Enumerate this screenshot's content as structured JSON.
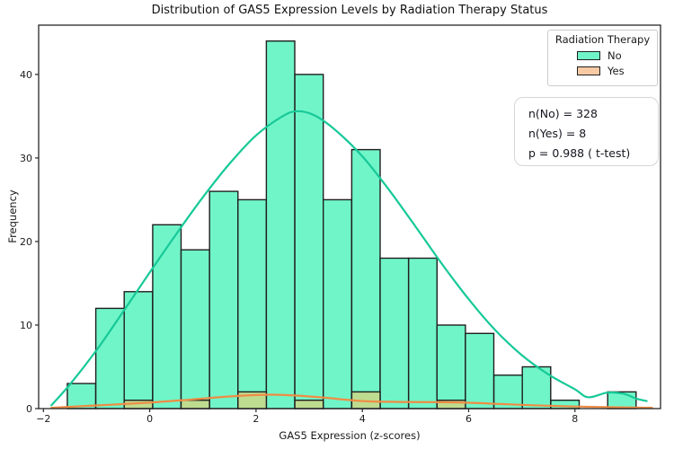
{
  "figure": {
    "title": "Distribution of GAS5 Expression Levels by Radiation Therapy Status"
  },
  "chart_data": {
    "type": "histogram",
    "title": "Distribution of GAS5 Expression Levels by Radiation Therapy Status",
    "xlabel": "GAS5 Expression (z-scores)",
    "ylabel": "Frequency",
    "xlim": [
      -2.09,
      9.61
    ],
    "ylim": [
      0,
      45.9
    ],
    "xticks": [
      -2,
      0,
      2,
      4,
      6,
      8
    ],
    "xtick_labels": [
      "−2",
      "0",
      "2",
      "4",
      "6",
      "8"
    ],
    "yticks": [
      0,
      10,
      20,
      30,
      40
    ],
    "ytick_labels": [
      "0",
      "10",
      "20",
      "30",
      "40"
    ],
    "grid": false,
    "bins": {
      "start": -1.55,
      "width": 0.535,
      "count": 20
    },
    "series": [
      {
        "name": "No",
        "counts": [
          3,
          12,
          14,
          22,
          19,
          26,
          25,
          44,
          40,
          25,
          31,
          18,
          18,
          10,
          9,
          4,
          5,
          1,
          0,
          2
        ],
        "total": 328
      },
      {
        "name": "Yes",
        "counts": [
          0,
          0,
          1,
          0,
          1,
          0,
          2,
          0,
          1,
          0,
          2,
          0,
          0,
          1,
          0,
          0,
          0,
          0,
          0,
          0
        ],
        "total": 8
      }
    ],
    "kde": {
      "no": [
        [
          -1.85,
          0.4
        ],
        [
          -1.5,
          2.9
        ],
        [
          -1.0,
          7.0
        ],
        [
          -0.5,
          11.6
        ],
        [
          0,
          16.3
        ],
        [
          0.5,
          20.9
        ],
        [
          1,
          25.3
        ],
        [
          1.5,
          29.3
        ],
        [
          2,
          32.7
        ],
        [
          2.5,
          35.0
        ],
        [
          2.78,
          35.6
        ],
        [
          3.1,
          35.1
        ],
        [
          3.5,
          33.3
        ],
        [
          4,
          30.2
        ],
        [
          4.5,
          26.2
        ],
        [
          5,
          21.8
        ],
        [
          5.5,
          17.3
        ],
        [
          6,
          13.1
        ],
        [
          6.5,
          9.4
        ],
        [
          7,
          6.4
        ],
        [
          7.5,
          4.1
        ],
        [
          8,
          2.3
        ],
        [
          8.25,
          1.35
        ],
        [
          8.6,
          1.9
        ],
        [
          8.9,
          1.8
        ],
        [
          9.15,
          1.2
        ],
        [
          9.35,
          0.9
        ]
      ],
      "yes": [
        [
          -1.85,
          0.1
        ],
        [
          -1,
          0.38
        ],
        [
          0,
          0.72
        ],
        [
          0.8,
          1.1
        ],
        [
          1.5,
          1.45
        ],
        [
          2,
          1.62
        ],
        [
          2.4,
          1.66
        ],
        [
          2.8,
          1.55
        ],
        [
          3.3,
          1.3
        ],
        [
          4,
          0.9
        ],
        [
          4.7,
          0.8
        ],
        [
          5.5,
          0.76
        ],
        [
          6,
          0.7
        ],
        [
          6.6,
          0.55
        ],
        [
          7.2,
          0.4
        ],
        [
          8,
          0.25
        ],
        [
          9,
          0.14
        ],
        [
          9.45,
          0.1
        ]
      ]
    },
    "legend": {
      "title": "Radiation Therapy",
      "entries": [
        "No",
        "Yes"
      ],
      "position": "upper right"
    },
    "annotation": {
      "lines": [
        "n(No) = 328",
        "n(Yes) = 8",
        "p = 0.988 ( t-test)"
      ]
    },
    "colors": {
      "no_fill": "#70f5c8",
      "no_edge": "#1f1f1f",
      "no_kde": "#17c998",
      "yes_fill": "#f8caa4",
      "yes_overlap_fill": "#bedc90",
      "yes_edge": "#1f1f1f",
      "yes_kde": "#ef8c44",
      "axis": "#262626",
      "text": "#1a1a1a",
      "box_border": "#d6d6d6"
    }
  }
}
